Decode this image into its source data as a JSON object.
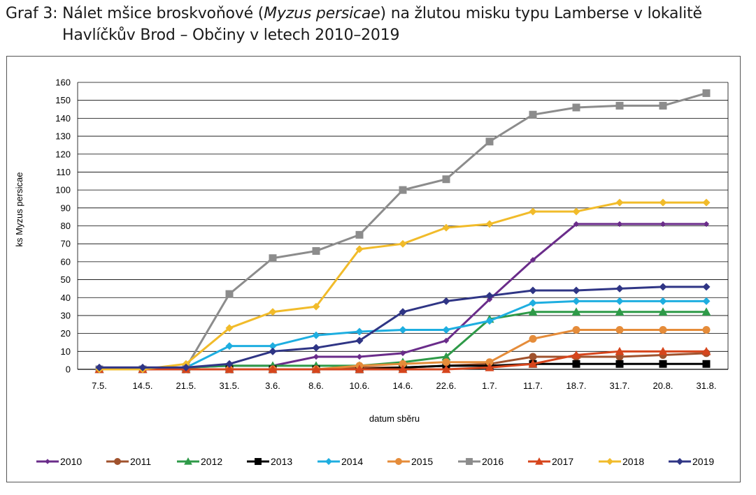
{
  "caption": {
    "prefix": "Graf 3: Nálet mšice broskvoňové (",
    "italic": "Myzus persicae",
    "suffix": ") na žlutou misku typu Lamberse v lokalitě",
    "line2": "Havlíčkův Brod – Občiny v letech 2010–2019"
  },
  "chart_data": {
    "type": "line",
    "title": "Graf 3: Nálet mšice broskvoňové (Myzus persicae) na žlutou misku typu Lamberse v lokalitě Havlíčkův Brod – Občiny v letech 2010–2019",
    "xlabel": "datum sběru",
    "ylabel": "ks Myzus persicae",
    "ylim": [
      0,
      160
    ],
    "ytick_step": 10,
    "grid": true,
    "legend_position": "bottom",
    "categories": [
      "7.5.",
      "14.5.",
      "21.5.",
      "31.5.",
      "3.6.",
      "8.6.",
      "10.6.",
      "14.6.",
      "22.6.",
      "1.7.",
      "11.7.",
      "18.7.",
      "31.7.",
      "20.8.",
      "31.8."
    ],
    "series": [
      {
        "name": "2010",
        "color": "#6a2c8a",
        "marker": "diamond-small",
        "values": [
          1,
          1,
          1,
          2,
          2,
          7,
          7,
          9,
          16,
          39,
          61,
          81,
          81,
          81,
          81
        ]
      },
      {
        "name": "2011",
        "color": "#a0522d",
        "marker": "circle",
        "values": [
          0,
          0,
          0,
          0,
          0,
          0,
          1,
          1,
          2,
          3,
          7,
          7,
          7,
          8,
          9
        ]
      },
      {
        "name": "2012",
        "color": "#2e9a48",
        "marker": "triangle",
        "values": [
          0,
          0,
          1,
          2,
          2,
          2,
          2,
          4,
          7,
          28,
          32,
          32,
          32,
          32,
          32
        ]
      },
      {
        "name": "2013",
        "color": "#000000",
        "marker": "square",
        "values": [
          0,
          0,
          0,
          0,
          0,
          0,
          0,
          1,
          2,
          2,
          3,
          3,
          3,
          3,
          3
        ]
      },
      {
        "name": "2014",
        "color": "#1eaee0",
        "marker": "diamond",
        "values": [
          0,
          0,
          1,
          13,
          13,
          19,
          21,
          22,
          22,
          27,
          37,
          38,
          38,
          38,
          38
        ]
      },
      {
        "name": "2015",
        "color": "#e58c3a",
        "marker": "circle",
        "values": [
          0,
          0,
          0,
          0,
          0,
          0,
          2,
          3,
          4,
          4,
          17,
          22,
          22,
          22,
          22
        ]
      },
      {
        "name": "2016",
        "color": "#8c8c8c",
        "marker": "square",
        "values": [
          0,
          0,
          1,
          42,
          62,
          66,
          75,
          100,
          106,
          127,
          142,
          146,
          147,
          147,
          154
        ]
      },
      {
        "name": "2017",
        "color": "#d6451c",
        "marker": "triangle",
        "values": [
          0,
          0,
          0,
          0,
          0,
          0,
          0,
          0,
          0,
          1,
          3,
          8,
          10,
          10,
          10
        ]
      },
      {
        "name": "2018",
        "color": "#f1bb2a",
        "marker": "diamond",
        "values": [
          0,
          0,
          3,
          23,
          32,
          35,
          67,
          70,
          79,
          81,
          88,
          88,
          93,
          93,
          93
        ]
      },
      {
        "name": "2019",
        "color": "#2f3585",
        "marker": "diamond",
        "values": [
          1,
          1,
          1,
          3,
          10,
          12,
          16,
          32,
          38,
          41,
          44,
          44,
          45,
          46,
          46
        ]
      }
    ]
  }
}
